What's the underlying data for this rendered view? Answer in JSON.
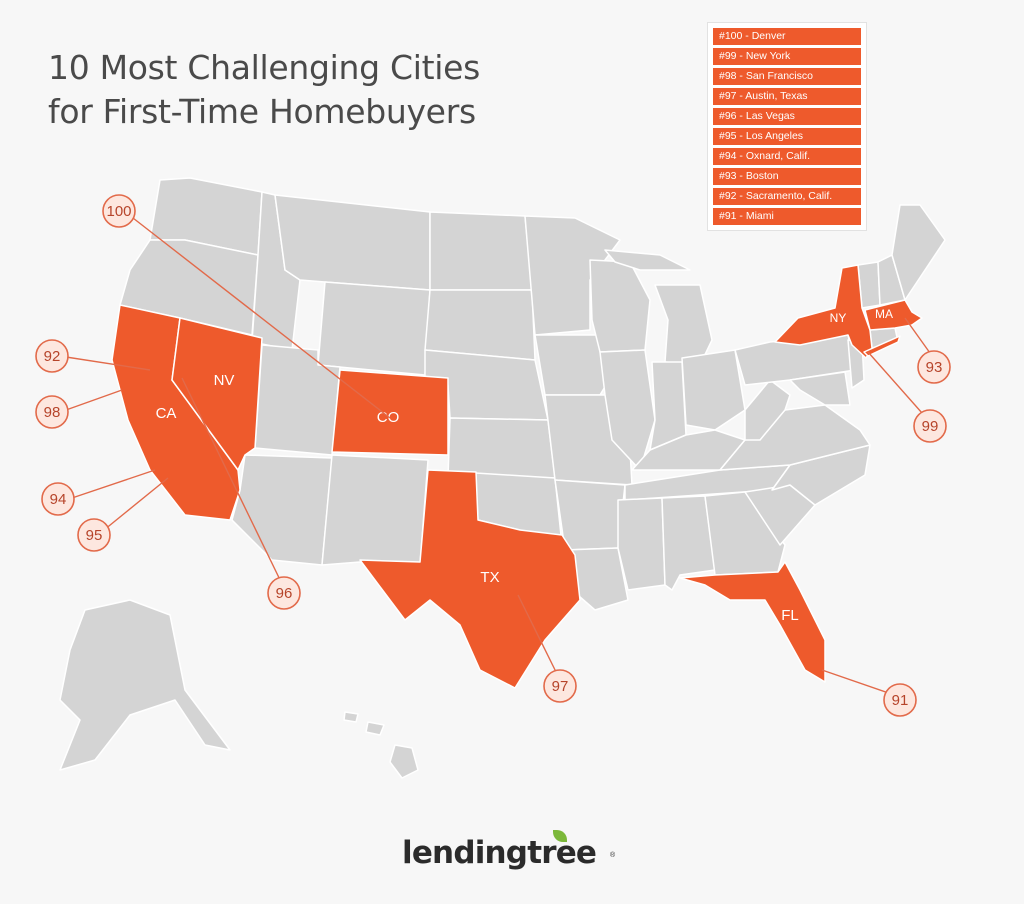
{
  "title": {
    "line1": "10 Most Challenging Cities",
    "line2": "for First-Time Homebuyers"
  },
  "legend": [
    "#100 - Denver",
    "#99 - New York",
    "#98 - San Francisco",
    "#97 - Austin, Texas",
    "#96 - Las Vegas",
    "#95 - Los Angeles",
    "#94 - Oxnard, Calif.",
    "#93 - Boston",
    "#92 - Sacramento, Calif.",
    "#91 - Miami"
  ],
  "states": {
    "ca": "CA",
    "nv": "NV",
    "co": "CO",
    "tx": "TX",
    "fl": "FL",
    "ny": "NY",
    "ma": "MA"
  },
  "badges": {
    "b100": "100",
    "b99": "99",
    "b98": "98",
    "b97": "97",
    "b96": "96",
    "b95": "95",
    "b94": "94",
    "b93": "93",
    "b92": "92",
    "b91": "91"
  },
  "colors": {
    "highlight": "#ee5a2c",
    "base_state": "#d4d4d4",
    "badge_fill": "#fde7df",
    "brand_leaf": "#7cb83a"
  },
  "logo": {
    "text": "lendingtree",
    "reg": "®"
  }
}
